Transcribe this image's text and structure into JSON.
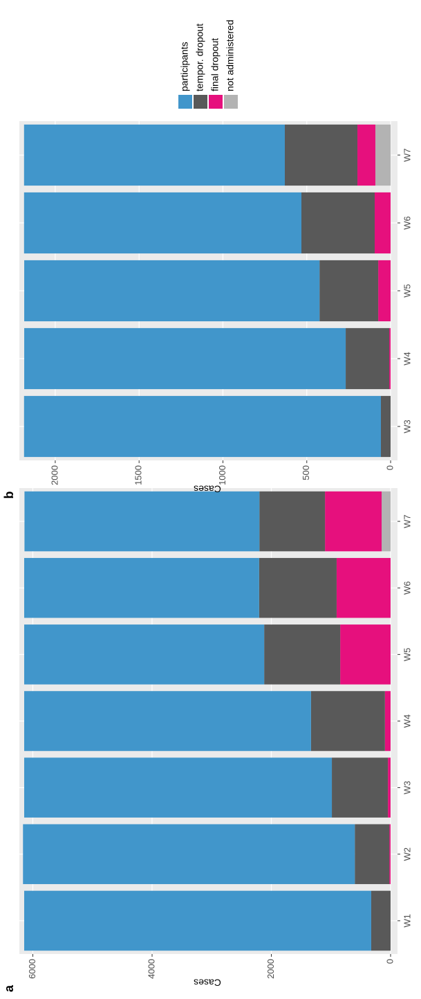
{
  "chart_data": [
    {
      "type": "bar",
      "stacked": true,
      "panel_label": "a",
      "ylabel": "Cases",
      "categories": [
        "W1",
        "W2",
        "W3",
        "W4",
        "W5",
        "W6",
        "W7"
      ],
      "series": [
        {
          "name": "participants",
          "color": "#4196cb",
          "values": [
            5820,
            5565,
            5160,
            4810,
            4025,
            3940,
            3940
          ]
        },
        {
          "name": "tempor. dropout",
          "color": "#595959",
          "values": [
            325,
            580,
            940,
            1240,
            1275,
            1300,
            1100
          ]
        },
        {
          "name": "final dropout",
          "color": "#e6107d",
          "values": [
            0,
            20,
            45,
            95,
            845,
            905,
            950
          ]
        },
        {
          "name": "not administered",
          "color": "#b3b3b3",
          "values": [
            0,
            0,
            0,
            0,
            0,
            0,
            150
          ]
        }
      ],
      "ylim": [
        -116,
        6226
      ],
      "yticks": [
        0,
        2000,
        4000,
        6000
      ],
      "grid": true
    },
    {
      "type": "bar",
      "stacked": true,
      "panel_label": "b",
      "ylabel": "Cases",
      "categories": [
        "W3",
        "W4",
        "W5",
        "W6",
        "W7"
      ],
      "series": [
        {
          "name": "participants",
          "color": "#4196cb",
          "values": [
            2128,
            1917,
            1761,
            1654,
            1555
          ]
        },
        {
          "name": "tempor. dropout",
          "color": "#595959",
          "values": [
            58,
            260,
            350,
            437,
            433
          ]
        },
        {
          "name": "final dropout",
          "color": "#e6107d",
          "values": [
            0,
            8,
            74,
            95,
            107
          ]
        },
        {
          "name": "not administered",
          "color": "#b3b3b3",
          "values": [
            0,
            0,
            0,
            0,
            91
          ]
        }
      ],
      "ylim": [
        -41,
        2214
      ],
      "yticks": [
        0,
        500,
        1000,
        1500,
        2000
      ],
      "grid": true,
      "legend": "top-right"
    }
  ]
}
